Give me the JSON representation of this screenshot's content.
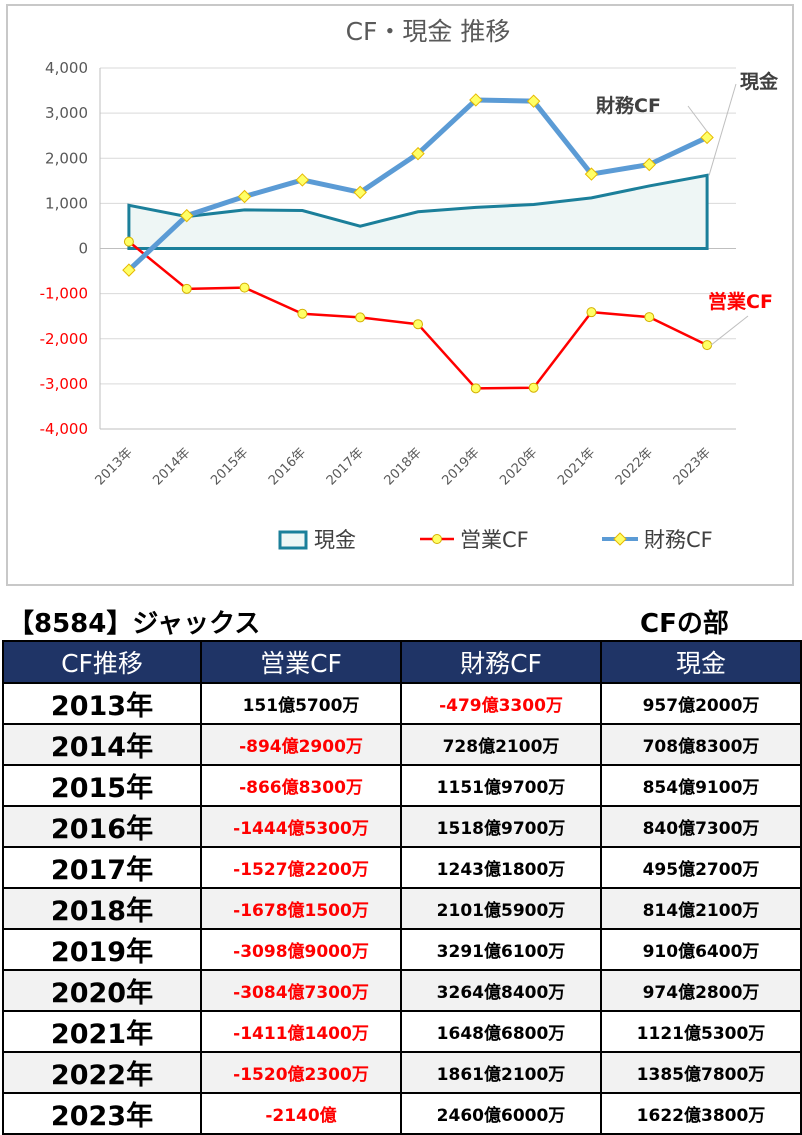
{
  "chart_data": {
    "type": "line",
    "title": "CF・現金 推移",
    "categories": [
      "2013年",
      "2014年",
      "2015年",
      "2016年",
      "2017年",
      "2018年",
      "2019年",
      "2020年",
      "2021年",
      "2022年",
      "2023年"
    ],
    "series": [
      {
        "name": "現金",
        "kind": "area",
        "color": "#1b7f9a",
        "values": [
          957,
          708,
          855,
          841,
          495,
          814,
          911,
          974,
          1122,
          1386,
          1622
        ]
      },
      {
        "name": "営業CF",
        "kind": "line",
        "color": "#ff0000",
        "values": [
          152,
          -894,
          -867,
          -1445,
          -1527,
          -1678,
          -3099,
          -3085,
          -1411,
          -1520,
          -2140
        ]
      },
      {
        "name": "財務CF",
        "kind": "line",
        "color": "#5b9bd5",
        "values": [
          -479,
          728,
          1152,
          1519,
          1244,
          2102,
          3292,
          3265,
          1649,
          1861,
          2461
        ]
      }
    ],
    "yticks": [
      "4,000",
      "3,000",
      "2,000",
      "1,000",
      "0",
      "-1,000",
      "-2,000",
      "-3,000",
      "-4,000"
    ],
    "ylim": [
      -4000,
      4000
    ],
    "grid": true,
    "legend": "bottom",
    "callouts": [
      "現金",
      "財務CF",
      "営業CF"
    ]
  },
  "header": {
    "stock": "【8584】ジャックス",
    "section": "CFの部"
  },
  "table": {
    "columns": [
      "CF推移",
      "営業CF",
      "財務CF",
      "現金"
    ],
    "rows": [
      {
        "year": "2013年",
        "op": "151億5700万",
        "fin": "-479億3300万",
        "cash": "957億2000万"
      },
      {
        "year": "2014年",
        "op": "-894億2900万",
        "fin": "728億2100万",
        "cash": "708億8300万"
      },
      {
        "year": "2015年",
        "op": "-866億8300万",
        "fin": "1151億9700万",
        "cash": "854億9100万"
      },
      {
        "year": "2016年",
        "op": "-1444億5300万",
        "fin": "1518億9700万",
        "cash": "840億7300万"
      },
      {
        "year": "2017年",
        "op": "-1527億2200万",
        "fin": "1243億1800万",
        "cash": "495億2700万"
      },
      {
        "year": "2018年",
        "op": "-1678億1500万",
        "fin": "2101億5900万",
        "cash": "814億2100万"
      },
      {
        "year": "2019年",
        "op": "-3098億9000万",
        "fin": "3291億6100万",
        "cash": "910億6400万"
      },
      {
        "year": "2020年",
        "op": "-3084億7300万",
        "fin": "3264億8400万",
        "cash": "974億2800万"
      },
      {
        "year": "2021年",
        "op": "-1411億1400万",
        "fin": "1648億6800万",
        "cash": "1121億5300万"
      },
      {
        "year": "2022年",
        "op": "-1520億2300万",
        "fin": "1861億2100万",
        "cash": "1385億7800万"
      },
      {
        "year": "2023年",
        "op": "-2140億",
        "fin": "2460億6000万",
        "cash": "1622億3800万"
      }
    ]
  }
}
